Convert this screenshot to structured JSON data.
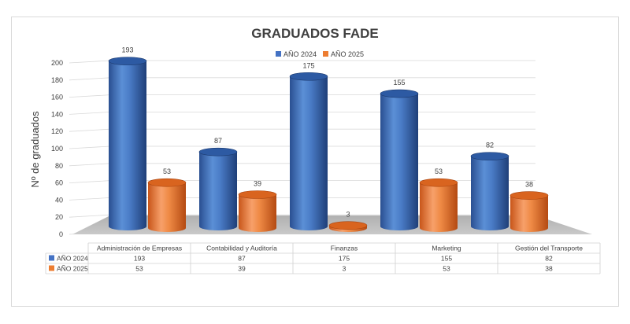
{
  "chart_data": {
    "type": "bar",
    "title": "GRADUADOS FADE",
    "ylabel": "Nº de graduados",
    "xlabel": "",
    "ylim": [
      0,
      200
    ],
    "yticks": [
      0,
      20,
      40,
      60,
      80,
      100,
      120,
      140,
      160,
      180,
      200
    ],
    "categories": [
      "Administración de Empresas",
      "Contabilidad y Auditoría",
      "Finanzas",
      "Marketing",
      "Gestión del Transporte"
    ],
    "series": [
      {
        "name": "AÑO 2024",
        "values": [
          193,
          87,
          175,
          155,
          82
        ],
        "color": "#4472c4"
      },
      {
        "name": "AÑO 2025",
        "values": [
          53,
          39,
          3,
          53,
          38
        ],
        "color": "#ed7d31"
      }
    ],
    "legend_position": "top",
    "grid": true,
    "data_table": true,
    "style": "3d-cylinder"
  }
}
